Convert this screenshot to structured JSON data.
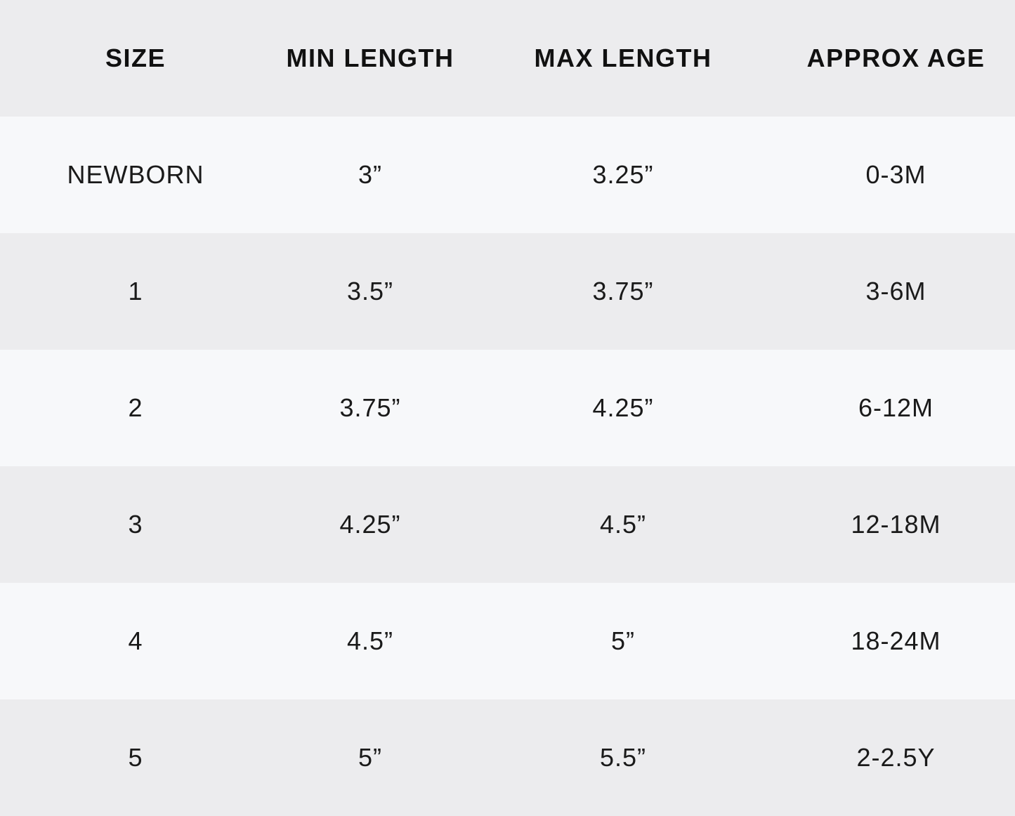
{
  "table": {
    "headers": [
      "SIZE",
      "MIN LENGTH",
      "MAX LENGTH",
      "APPROX AGE"
    ],
    "rows": [
      [
        "NEWBORN",
        "3”",
        "3.25”",
        "0-3M"
      ],
      [
        "1",
        "3.5”",
        "3.75”",
        "3-6M"
      ],
      [
        "2",
        "3.75”",
        "4.25”",
        "6-12M"
      ],
      [
        "3",
        "4.25”",
        "4.5”",
        "12-18M"
      ],
      [
        "4",
        "4.5”",
        "5”",
        "18-24M"
      ],
      [
        "5",
        "5”",
        "5.5”",
        "2-2.5Y"
      ]
    ]
  },
  "colors": {
    "header_bg": "#ececee",
    "row_light": "#f7f8fa",
    "row_dark": "#ececee",
    "text": "#1a1a1a"
  }
}
